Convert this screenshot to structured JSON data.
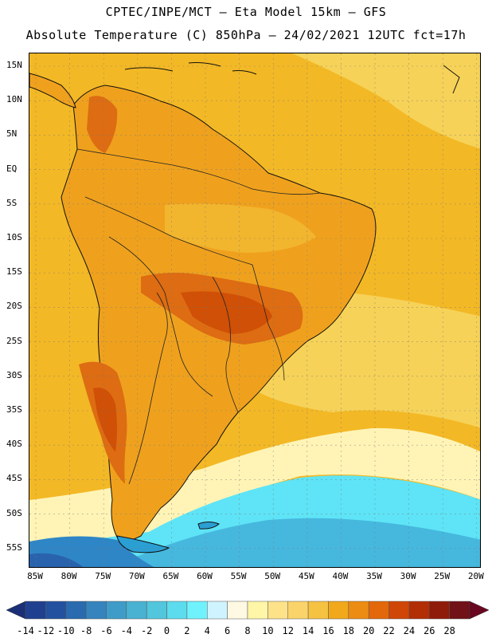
{
  "title_line1": "CPTEC/INPE/MCT –  Eta Model 15km – GFS",
  "title_line2": "Absolute Temperature (C) 850hPa – 24/02/2021 12UTC fct=17h",
  "lat_labels": [
    "15N",
    "10N",
    "5N",
    "EQ",
    "5S",
    "10S",
    "15S",
    "20S",
    "25S",
    "30S",
    "35S",
    "40S",
    "45S",
    "50S",
    "55S"
  ],
  "lon_labels": [
    "85W",
    "80W",
    "75W",
    "70W",
    "65W",
    "60W",
    "55W",
    "50W",
    "45W",
    "40W",
    "35W",
    "30W",
    "25W",
    "20W"
  ],
  "colorbar": {
    "labels": [
      "-14",
      "-12",
      "-10",
      "-8",
      "-6",
      "-4",
      "-2",
      "0",
      "2",
      "4",
      "6",
      "8",
      "10",
      "12",
      "14",
      "16",
      "18",
      "20",
      "22",
      "24",
      "26",
      "28"
    ],
    "colors": [
      "#1f3f8f",
      "#23519f",
      "#2a6aae",
      "#3584bd",
      "#3f9cc8",
      "#49b1d2",
      "#52c6dc",
      "#5cdced",
      "#6ff2fb",
      "#d0f4ff",
      "#fff8e2",
      "#fff6a8",
      "#fde28a",
      "#fad46a",
      "#f6c241",
      "#f1a81a",
      "#ec8c12",
      "#e2680b",
      "#cf4607",
      "#b22e05",
      "#8f1b0a",
      "#701217"
    ],
    "low_arrow_color": "#1a2f75",
    "high_arrow_color": "#6a0720"
  },
  "map": {
    "ocean_warm": "#f3b825",
    "ocean_mild": "#f6d258",
    "land_base": "#efa11d",
    "land_hot": "#dd6c12",
    "land_hottest": "#cf5006",
    "south_pale": "#fff4b6",
    "south_cyan": "#5ee4f6",
    "south_mid": "#46b8de",
    "south_deep": "#2f86c6",
    "south_darkest": "#2a63ad",
    "coast_color": "#111111",
    "grid_color": "#7a7a7a"
  }
}
